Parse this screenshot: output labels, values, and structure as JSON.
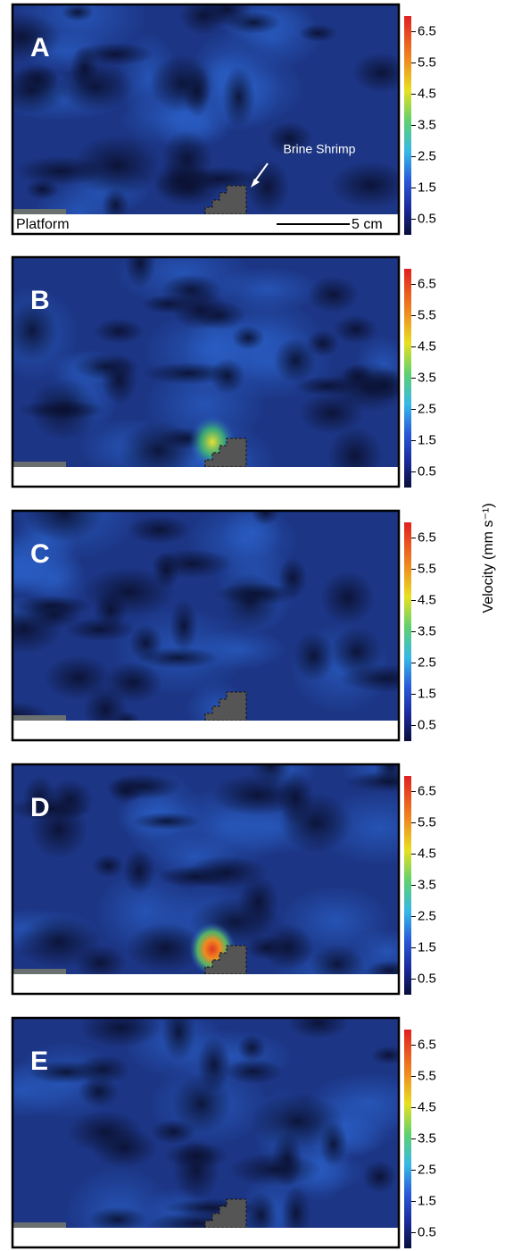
{
  "figure": {
    "colorbar_label": "Velocity (mm s⁻¹)",
    "colorbar_range": [
      0,
      7
    ],
    "annotations": {
      "brine_shrimp": "Brine Shrimp",
      "platform": "Platform",
      "scale_bar": "5 cm"
    },
    "panels": [
      {
        "label": "A",
        "colorbar_ticks": [
          0.5,
          1.5,
          2.5,
          3.5,
          4.5,
          5.5,
          6.5
        ]
      },
      {
        "label": "B",
        "colorbar_ticks": [
          0.5,
          1.5,
          2.5,
          3.5,
          4.5,
          5.5,
          6.5
        ]
      },
      {
        "label": "C",
        "colorbar_ticks": [
          0.5,
          1.5,
          2.5,
          3.5,
          4.5,
          5.5,
          6.5
        ]
      },
      {
        "label": "D",
        "colorbar_ticks": [
          0.5,
          1.5,
          2.5,
          3.5,
          4.5,
          5.5,
          6.5
        ]
      },
      {
        "label": "E",
        "colorbar_ticks": [
          0.5,
          1.5,
          2.5,
          3.5,
          4.5,
          5.5,
          6.5
        ]
      }
    ]
  }
}
